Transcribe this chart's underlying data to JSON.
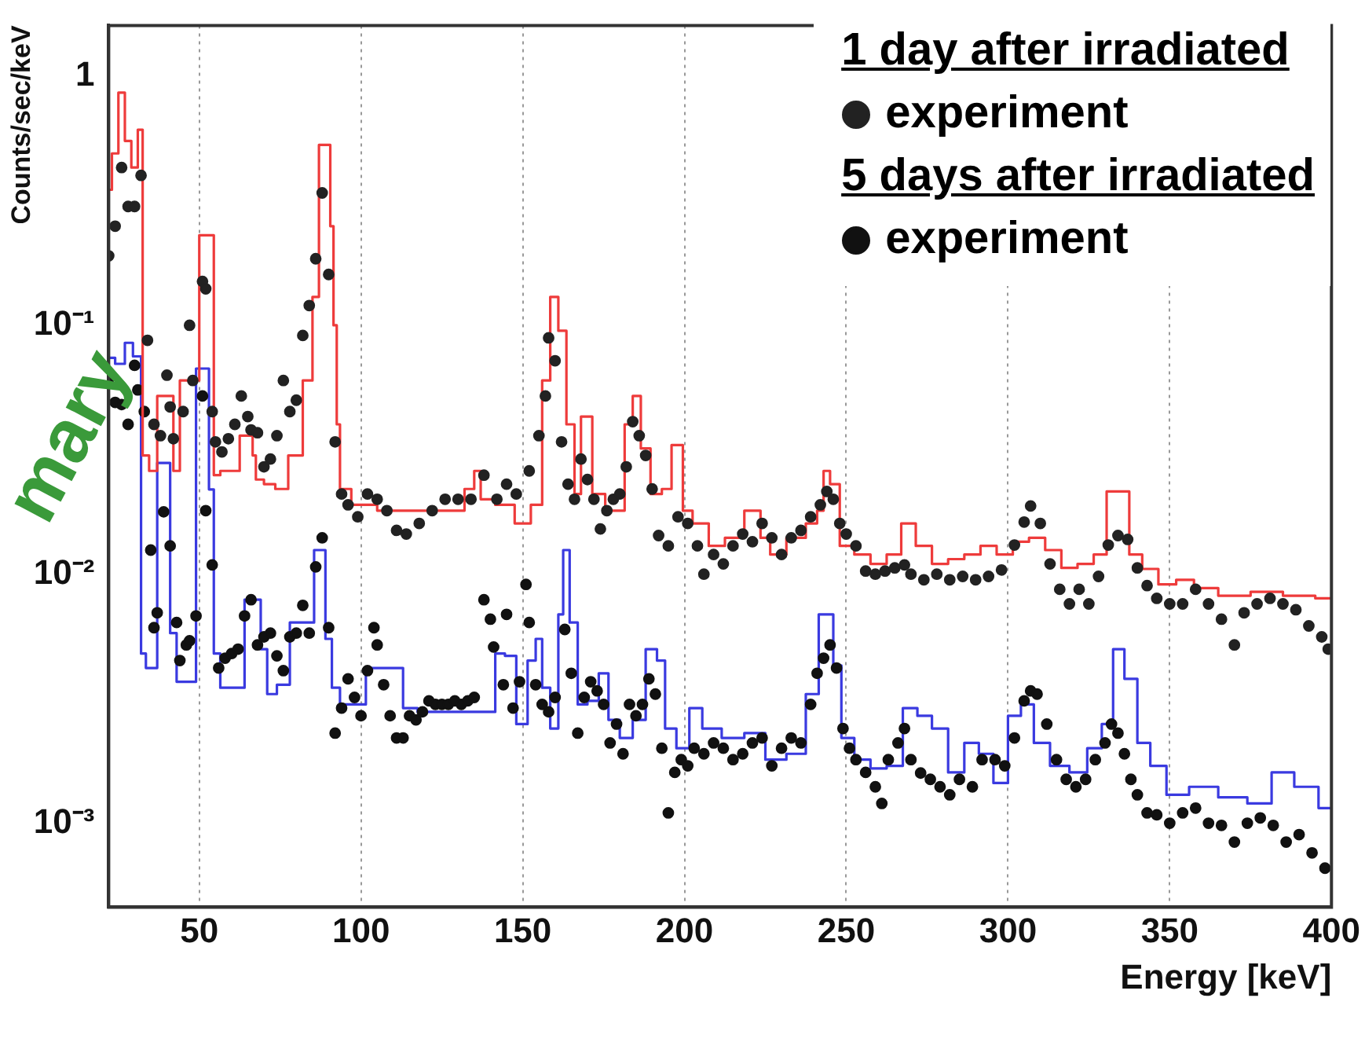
{
  "chart_data": {
    "type": "scatter",
    "ylabel": "Counts/sec/keV",
    "xlabel": "Energy [keV]",
    "annotations": [
      "1 day after irradiated",
      "5 days after irradiated",
      "mary"
    ],
    "xlim": [
      22,
      400
    ],
    "xticks": [
      50,
      100,
      150,
      200,
      250,
      300,
      350,
      400
    ],
    "ylim": [
      0.00046,
      1.6
    ],
    "yticks": [
      {
        "value": 0.001,
        "label": "10⁻³"
      },
      {
        "value": 0.01,
        "label": "10⁻²"
      },
      {
        "value": 0.1,
        "label": "10⁻¹"
      },
      {
        "value": 1,
        "label": "1"
      }
    ],
    "log": "y",
    "grid": "x",
    "legend": "top right",
    "series": [
      {
        "name": "experiment",
        "marker": "circle",
        "color": "#222222",
        "x": [
          22,
          24,
          26,
          28,
          30,
          32,
          34,
          36,
          38,
          40,
          41,
          42,
          45,
          47,
          48,
          51,
          52,
          54,
          55,
          57,
          59,
          61,
          63,
          65,
          66,
          68,
          70,
          72,
          74,
          76,
          78,
          80,
          82,
          84,
          86,
          88,
          90,
          92,
          94,
          96,
          99,
          102,
          105,
          108,
          111,
          114,
          118,
          122,
          126,
          130,
          134,
          138,
          142,
          145,
          148,
          152,
          155,
          157,
          158,
          160,
          162,
          164,
          166,
          168,
          170,
          172,
          174,
          176,
          178,
          180,
          182,
          184,
          186,
          188,
          190,
          192,
          195,
          198,
          201,
          204,
          206,
          209,
          212,
          215,
          218,
          221,
          224,
          227,
          230,
          233,
          236,
          239,
          242,
          244,
          246,
          248,
          250,
          253,
          256,
          259,
          262,
          265,
          268,
          270,
          274,
          278,
          282,
          286,
          290,
          294,
          298,
          302,
          305,
          307,
          310,
          313,
          316,
          319,
          322,
          325,
          328,
          331,
          334,
          337,
          340,
          343,
          346,
          350,
          354,
          358,
          362,
          366,
          370,
          373,
          377,
          381,
          385,
          389,
          393,
          397,
          399
        ],
        "values": [
          0.19,
          0.25,
          0.43,
          0.3,
          0.3,
          0.4,
          0.087,
          0.04,
          0.036,
          0.063,
          0.047,
          0.035,
          0.045,
          0.1,
          0.06,
          0.15,
          0.14,
          0.045,
          0.034,
          0.031,
          0.035,
          0.04,
          0.052,
          0.043,
          0.038,
          0.037,
          0.027,
          0.029,
          0.036,
          0.06,
          0.045,
          0.05,
          0.091,
          0.12,
          0.185,
          0.34,
          0.16,
          0.034,
          0.021,
          0.019,
          0.017,
          0.021,
          0.02,
          0.018,
          0.015,
          0.0145,
          0.016,
          0.018,
          0.02,
          0.02,
          0.02,
          0.025,
          0.02,
          0.023,
          0.021,
          0.026,
          0.036,
          0.052,
          0.089,
          0.072,
          0.034,
          0.023,
          0.02,
          0.029,
          0.024,
          0.02,
          0.0152,
          0.018,
          0.02,
          0.021,
          0.027,
          0.041,
          0.036,
          0.03,
          0.022,
          0.0143,
          0.013,
          0.017,
          0.016,
          0.013,
          0.01,
          0.012,
          0.011,
          0.013,
          0.0145,
          0.0135,
          0.016,
          0.014,
          0.012,
          0.014,
          0.015,
          0.017,
          0.019,
          0.0215,
          0.02,
          0.016,
          0.0145,
          0.013,
          0.0103,
          0.01,
          0.0103,
          0.0106,
          0.0109,
          0.01,
          0.0095,
          0.01,
          0.0095,
          0.0098,
          0.0095,
          0.0098,
          0.0104,
          0.0131,
          0.0162,
          0.0188,
          0.016,
          0.011,
          0.0087,
          0.0076,
          0.0087,
          0.0076,
          0.0098,
          0.0131,
          0.0143,
          0.0138,
          0.0106,
          0.009,
          0.008,
          0.0076,
          0.0076,
          0.0087,
          0.0076,
          0.0066,
          0.0052,
          0.007,
          0.0076,
          0.008,
          0.0076,
          0.0072,
          0.0062,
          0.0056,
          0.005
        ]
      },
      {
        "type": "step",
        "color": "#ee3b3b",
        "x": [
          22,
          24,
          26,
          28,
          30,
          32,
          33,
          36,
          38,
          41,
          43,
          45,
          49,
          51,
          54,
          55,
          58,
          62,
          63,
          66,
          67,
          68,
          72,
          75,
          80,
          84,
          86,
          88,
          90,
          91,
          92,
          93,
          94,
          100,
          110,
          120,
          130,
          134,
          136,
          138,
          145,
          150,
          155,
          157,
          160,
          162,
          165,
          167,
          169,
          170,
          173,
          178,
          180,
          183,
          185,
          188,
          191,
          195,
          197,
          199,
          200,
          205,
          210,
          215,
          222,
          225,
          228,
          235,
          240,
          242,
          244,
          246,
          250,
          255,
          260,
          265,
          269,
          274,
          279,
          284,
          289,
          294,
          299,
          304,
          309,
          314,
          319,
          324,
          329,
          332,
          336,
          339,
          344,
          349,
          355,
          360,
          370,
          380,
          390,
          400
        ],
        "values": [
          0.35,
          0.49,
          0.86,
          0.55,
          0.43,
          0.61,
          0.03,
          0.026,
          0.052,
          0.052,
          0.026,
          0.06,
          0.06,
          0.23,
          0.23,
          0.025,
          0.026,
          0.026,
          0.036,
          0.036,
          0.03,
          0.024,
          0.023,
          0.022,
          0.03,
          0.06,
          0.13,
          0.53,
          0.53,
          0.25,
          0.1,
          0.04,
          0.022,
          0.019,
          0.018,
          0.018,
          0.018,
          0.022,
          0.026,
          0.02,
          0.019,
          0.016,
          0.019,
          0.06,
          0.13,
          0.095,
          0.04,
          0.021,
          0.043,
          0.043,
          0.021,
          0.018,
          0.018,
          0.04,
          0.052,
          0.032,
          0.021,
          0.022,
          0.033,
          0.033,
          0.018,
          0.016,
          0.013,
          0.014,
          0.018,
          0.014,
          0.012,
          0.014,
          0.016,
          0.018,
          0.026,
          0.023,
          0.013,
          0.012,
          0.011,
          0.012,
          0.016,
          0.013,
          0.011,
          0.0115,
          0.012,
          0.013,
          0.012,
          0.0135,
          0.014,
          0.0125,
          0.0106,
          0.011,
          0.012,
          0.0215,
          0.0215,
          0.012,
          0.0105,
          0.0091,
          0.0095,
          0.0088,
          0.0082,
          0.0085,
          0.0082,
          0.008
        ]
      },
      {
        "name": "experiment",
        "marker": "circle",
        "color": "#111111",
        "x": [
          22,
          24,
          26,
          28,
          30,
          31,
          33,
          35,
          36,
          37,
          39,
          41,
          43,
          44,
          46,
          47,
          49,
          51,
          52,
          54,
          56,
          58,
          60,
          62,
          64,
          66,
          68,
          70,
          72,
          74,
          76,
          78,
          80,
          82,
          84,
          86,
          88,
          90,
          92,
          94,
          96,
          98,
          100,
          102,
          104,
          105,
          107,
          109,
          111,
          113,
          115,
          117,
          119,
          121,
          123,
          125,
          127,
          129,
          131,
          133,
          135,
          138,
          140,
          141,
          144,
          145,
          147,
          149,
          151,
          152,
          154,
          156,
          158,
          160,
          163,
          165,
          167,
          169,
          171,
          173,
          175,
          177,
          179,
          181,
          183,
          185,
          187,
          189,
          191,
          193,
          195,
          197,
          199,
          201,
          203,
          206,
          209,
          212,
          215,
          218,
          221,
          224,
          227,
          230,
          233,
          236,
          239,
          241,
          243,
          245,
          247,
          249,
          251,
          253,
          256,
          259,
          261,
          263,
          266,
          268,
          270,
          273,
          276,
          279,
          282,
          285,
          289,
          292,
          296,
          299,
          302,
          305,
          307,
          309,
          312,
          315,
          318,
          321,
          324,
          327,
          330,
          332,
          334,
          336,
          338,
          340,
          343,
          346,
          350,
          354,
          358,
          362,
          366,
          370,
          374,
          378,
          382,
          386,
          390,
          394,
          398
        ],
        "values": [
          0.061,
          0.049,
          0.048,
          0.04,
          0.069,
          0.055,
          0.045,
          0.0125,
          0.0061,
          0.007,
          0.0178,
          0.013,
          0.0064,
          0.0045,
          0.0052,
          0.0054,
          0.0068,
          0.052,
          0.018,
          0.0109,
          0.0042,
          0.0046,
          0.0048,
          0.005,
          0.0068,
          0.0079,
          0.0052,
          0.0056,
          0.0058,
          0.0047,
          0.0041,
          0.0056,
          0.0058,
          0.0075,
          0.0058,
          0.0107,
          0.014,
          0.0061,
          0.0023,
          0.0029,
          0.0038,
          0.0032,
          0.0027,
          0.0041,
          0.0061,
          0.0052,
          0.0036,
          0.0027,
          0.0022,
          0.0022,
          0.0027,
          0.0026,
          0.0028,
          0.0031,
          0.003,
          0.003,
          0.003,
          0.0031,
          0.003,
          0.0031,
          0.0032,
          0.0079,
          0.0066,
          0.0051,
          0.0036,
          0.0069,
          0.0029,
          0.0037,
          0.0091,
          0.0064,
          0.0036,
          0.003,
          0.0028,
          0.0032,
          0.006,
          0.004,
          0.0023,
          0.0032,
          0.0037,
          0.0034,
          0.003,
          0.0021,
          0.0025,
          0.0019,
          0.003,
          0.0027,
          0.003,
          0.0038,
          0.0033,
          0.002,
          0.0011,
          0.0016,
          0.0018,
          0.0017,
          0.002,
          0.0019,
          0.0021,
          0.002,
          0.0018,
          0.0019,
          0.0021,
          0.0022,
          0.0017,
          0.002,
          0.0022,
          0.0021,
          0.003,
          0.004,
          0.0046,
          0.0052,
          0.0042,
          0.0024,
          0.002,
          0.0018,
          0.0016,
          0.0014,
          0.0012,
          0.0018,
          0.0021,
          0.0024,
          0.0018,
          0.00159,
          0.0015,
          0.0014,
          0.0013,
          0.0015,
          0.0014,
          0.0018,
          0.0018,
          0.0017,
          0.0022,
          0.0031,
          0.0034,
          0.0033,
          0.0025,
          0.0018,
          0.0015,
          0.0014,
          0.0015,
          0.0018,
          0.0021,
          0.0025,
          0.0023,
          0.0019,
          0.0015,
          0.0013,
          0.0011,
          0.00108,
          0.001,
          0.0011,
          0.00115,
          0.001,
          0.00098,
          0.00084,
          0.001,
          0.00105,
          0.00098,
          0.00084,
          0.0009,
          0.00076,
          0.00066
        ]
      },
      {
        "type": "step",
        "color": "#3a3ae0",
        "x": [
          22,
          26,
          28,
          31,
          33,
          34,
          36,
          38,
          40,
          42,
          44,
          48,
          50,
          52,
          54,
          55,
          58,
          62,
          66,
          68,
          70,
          72,
          76,
          80,
          84,
          87,
          88,
          90,
          92,
          95,
          100,
          103,
          111,
          115,
          120,
          130,
          140,
          143,
          146,
          150,
          153,
          155,
          157,
          160,
          162,
          163,
          166,
          168,
          172,
          175,
          178,
          182,
          186,
          190,
          193,
          195,
          200,
          203,
          208,
          215,
          222,
          228,
          235,
          240,
          243,
          245,
          247,
          250,
          255,
          260,
          265,
          270,
          274,
          279,
          284,
          289,
          293,
          298,
          302,
          306,
          310,
          316,
          322,
          327,
          331,
          334,
          338,
          342,
          346,
          352,
          360,
          370,
          378,
          385,
          392,
          400
        ],
        "values": [
          0.074,
          0.07,
          0.085,
          0.075,
          0.0048,
          0.0042,
          0.0042,
          0.028,
          0.028,
          0.0058,
          0.0037,
          0.0037,
          0.067,
          0.067,
          0.0219,
          0.0048,
          0.0035,
          0.0035,
          0.0079,
          0.0079,
          0.005,
          0.0033,
          0.0036,
          0.0064,
          0.0064,
          0.0125,
          0.0125,
          0.0055,
          0.0035,
          0.003,
          0.003,
          0.0042,
          0.0042,
          0.0029,
          0.0028,
          0.0028,
          0.0028,
          0.0048,
          0.0047,
          0.0025,
          0.0045,
          0.0055,
          0.0035,
          0.0024,
          0.0069,
          0.0125,
          0.0064,
          0.003,
          0.0031,
          0.004,
          0.0026,
          0.0022,
          0.0026,
          0.005,
          0.0045,
          0.0024,
          0.002,
          0.0029,
          0.0024,
          0.0022,
          0.0023,
          0.0018,
          0.0019,
          0.0033,
          0.0069,
          0.0069,
          0.0043,
          0.0022,
          0.0018,
          0.00166,
          0.0017,
          0.0029,
          0.0027,
          0.0024,
          0.0016,
          0.0021,
          0.0019,
          0.00145,
          0.0027,
          0.003,
          0.0021,
          0.0017,
          0.0016,
          0.002,
          0.0025,
          0.005,
          0.0038,
          0.0021,
          0.0017,
          0.0013,
          0.0014,
          0.00127,
          0.0012,
          0.0016,
          0.0014,
          0.00115
        ]
      }
    ]
  }
}
